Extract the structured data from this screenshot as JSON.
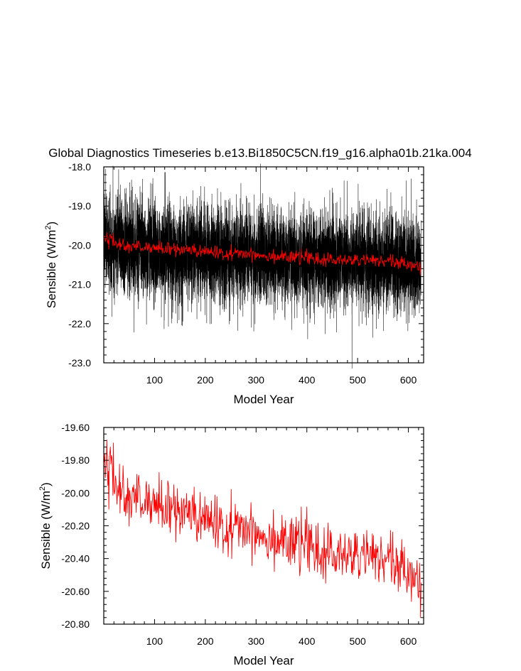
{
  "title": "Global Diagnostics Timeseries b.e13.Bi1850C5CN.f19_g16.alpha01b.21ka.004",
  "colors": {
    "monthly": "#000000",
    "annual": "#ff0000",
    "frame": "#000000"
  },
  "chart_data": [
    {
      "type": "line",
      "name": "monthly-and-annual-timeseries",
      "xlabel": "Model Year",
      "ylabel_prefix": "Sensible (W/m",
      "ylabel_sup": "2",
      "ylabel_suffix": ")",
      "xlim": [
        0,
        630
      ],
      "ylim": [
        -23.0,
        -18.0
      ],
      "xticks": [
        100,
        200,
        300,
        400,
        500,
        600
      ],
      "yticks": [
        {
          "value": -18.0,
          "label": "-18.0"
        },
        {
          "value": -19.0,
          "label": "-19.0"
        },
        {
          "value": -20.0,
          "label": "-20.0"
        },
        {
          "value": -21.0,
          "label": "-21.0"
        },
        {
          "value": -22.0,
          "label": "-22.0"
        },
        {
          "value": -23.0,
          "label": "-23.0"
        }
      ],
      "series": [
        {
          "name": "monthly",
          "color": "#000000",
          "n_points": 7500,
          "x_start": 0.04,
          "x_end": 625,
          "trend": [
            [
              0,
              -19.85
            ],
            [
              30,
              -20.0
            ],
            [
              100,
              -20.15
            ],
            [
              200,
              -20.22
            ],
            [
              300,
              -20.28
            ],
            [
              400,
              -20.33
            ],
            [
              500,
              -20.38
            ],
            [
              625,
              -20.45
            ]
          ],
          "noise_sd": 0.6
        },
        {
          "name": "annual",
          "color": "#ff0000",
          "x_start": 1,
          "x_end": 625,
          "trend": [
            [
              0,
              -19.72
            ],
            [
              10,
              -19.82
            ],
            [
              30,
              -20.0
            ],
            [
              100,
              -20.07
            ],
            [
              150,
              -20.12
            ],
            [
              200,
              -20.17
            ],
            [
              250,
              -20.2
            ],
            [
              300,
              -20.23
            ],
            [
              350,
              -20.29
            ],
            [
              400,
              -20.33
            ],
            [
              450,
              -20.38
            ],
            [
              500,
              -20.38
            ],
            [
              550,
              -20.4
            ],
            [
              600,
              -20.47
            ],
            [
              625,
              -20.55
            ]
          ],
          "noise_sd": 0.085
        }
      ]
    },
    {
      "type": "line",
      "name": "annual-timeseries",
      "xlabel": "Model Year",
      "ylabel_prefix": "Sensible (W/m",
      "ylabel_sup": "2",
      "ylabel_suffix": ")",
      "xlim": [
        0,
        630
      ],
      "ylim": [
        -20.8,
        -19.6
      ],
      "xticks": [
        100,
        200,
        300,
        400,
        500,
        600
      ],
      "yticks": [
        {
          "value": -19.6,
          "label": "-19.60"
        },
        {
          "value": -19.8,
          "label": "-19.80"
        },
        {
          "value": -20.0,
          "label": "-20.00"
        },
        {
          "value": -20.2,
          "label": "-20.20"
        },
        {
          "value": -20.4,
          "label": "-20.40"
        },
        {
          "value": -20.6,
          "label": "-20.60"
        },
        {
          "value": -20.8,
          "label": "-20.80"
        }
      ],
      "series": [
        {
          "name": "annual",
          "color": "#ff0000",
          "x_start": 1,
          "x_end": 625,
          "trend": [
            [
              0,
              -19.72
            ],
            [
              10,
              -19.82
            ],
            [
              30,
              -20.0
            ],
            [
              100,
              -20.07
            ],
            [
              150,
              -20.12
            ],
            [
              200,
              -20.17
            ],
            [
              250,
              -20.2
            ],
            [
              300,
              -20.23
            ],
            [
              350,
              -20.29
            ],
            [
              400,
              -20.33
            ],
            [
              450,
              -20.38
            ],
            [
              500,
              -20.38
            ],
            [
              550,
              -20.4
            ],
            [
              600,
              -20.47
            ],
            [
              625,
              -20.55
            ]
          ],
          "noise_sd": 0.085
        }
      ]
    }
  ]
}
